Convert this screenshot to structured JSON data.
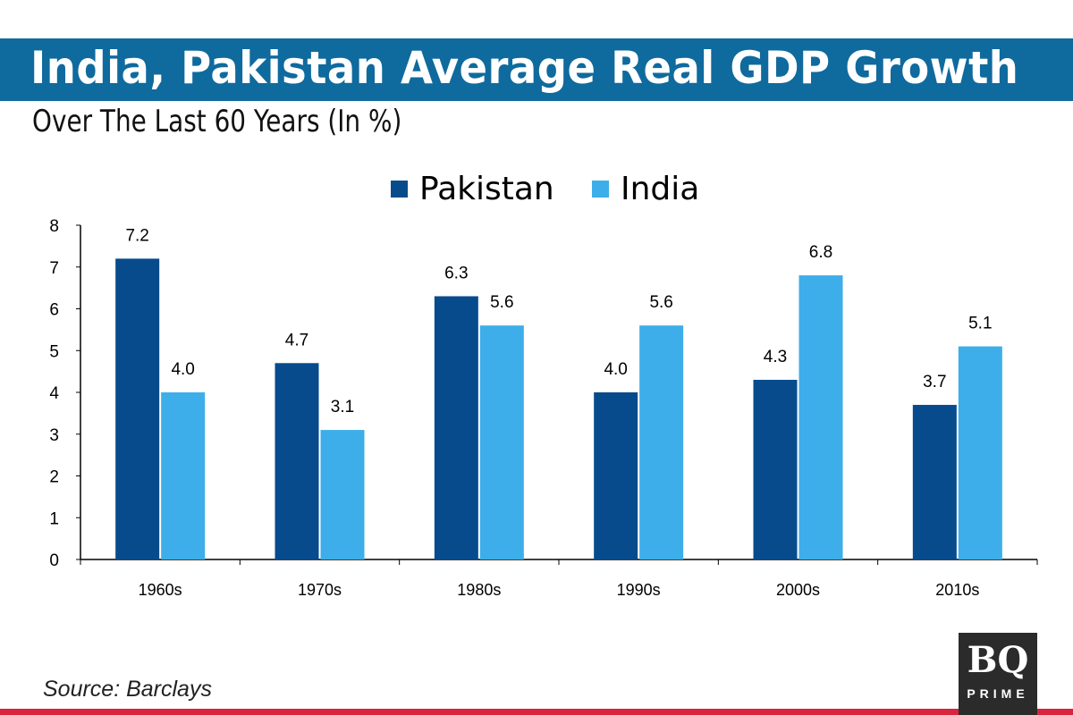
{
  "chart_data": {
    "type": "bar",
    "title": "India, Pakistan Average Real GDP Growth",
    "subtitle": "Over The Last 60 Years (In %)",
    "categories": [
      "1960s",
      "1970s",
      "1980s",
      "1990s",
      "2000s",
      "2010s"
    ],
    "series": [
      {
        "name": "Pakistan",
        "color": "#074b8c",
        "values": [
          7.2,
          4.7,
          6.3,
          4.0,
          4.3,
          3.7
        ]
      },
      {
        "name": "India",
        "color": "#3daee9",
        "values": [
          4.0,
          3.1,
          5.6,
          5.6,
          6.8,
          5.1
        ]
      }
    ],
    "ylim": [
      0,
      8
    ],
    "yticks": [
      0,
      1,
      2,
      3,
      4,
      5,
      6,
      7,
      8
    ],
    "grid": false,
    "legend_position": "top-center",
    "source": "Source: Barclays"
  },
  "branding": {
    "logo_text": "BQ PRIME",
    "title_band_color": "#0f6a9e",
    "footer_line_color": "#d8243f"
  }
}
